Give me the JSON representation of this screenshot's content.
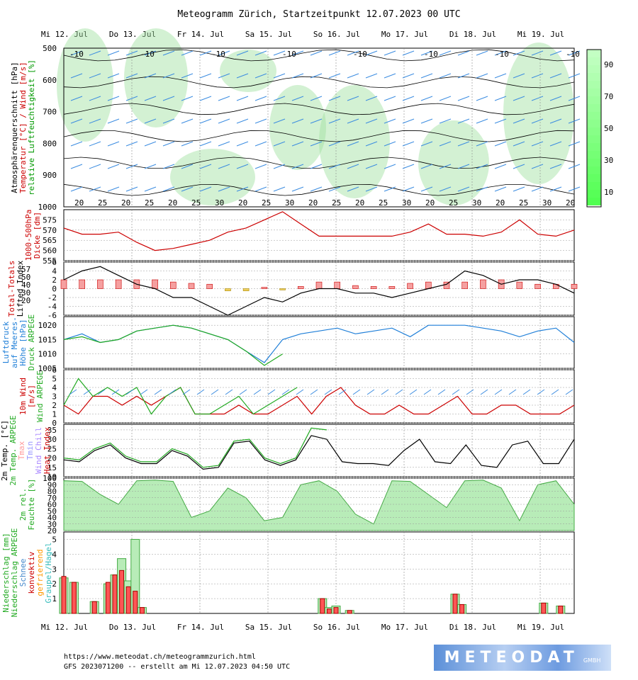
{
  "chart_data": {
    "type": "line",
    "title": "Meteogramm Zürich, Startzeitpunkt 12.07.2023 00 UTC",
    "days": [
      "Mi 12. Jul",
      "Do 13. Jul",
      "Fr 14. Jul",
      "Sa 15. Jul",
      "So 16. Jul",
      "Mo 17. Jul",
      "Di 18. Jul",
      "Mi 19. Jul"
    ],
    "panels": [
      {
        "id": "cross-section",
        "labels": [
          {
            "text": "Atmosphärenquerschnitt [hPa]",
            "color": "#000000"
          },
          {
            "text": "Temperatur [°C] / Wind [m/s]",
            "color": "#cc0000"
          },
          {
            "text": "relative Luftfeuchtigkeit [%]",
            "color": "#009900"
          }
        ],
        "yticks": [
          "500",
          "600",
          "700",
          "800",
          "900",
          "1000"
        ],
        "colorbar_ticks": [
          "90",
          "70",
          "50",
          "30",
          "10"
        ],
        "upper_temps": [
          "-10",
          "-10",
          "-10",
          "-10",
          "-10",
          "-10",
          "-10",
          "-10"
        ],
        "lower_temps": [
          "20",
          "25",
          "20",
          "25",
          "20",
          "25",
          "30",
          "20",
          "25",
          "30",
          "20",
          "25",
          "20",
          "25",
          "30",
          "20",
          "25",
          "30",
          "20",
          "25",
          "30",
          "20"
        ]
      },
      {
        "id": "thickness",
        "labels": [
          {
            "text": "1000-500hPa",
            "color": "#cc0000"
          },
          {
            "text": "Dicke [dm]",
            "color": "#cc0000"
          }
        ],
        "yticks": [
          "575",
          "570",
          "565",
          "560",
          "555"
        ],
        "ylim": [
          555,
          580
        ],
        "series": [
          {
            "values": [
              571,
              568,
              568,
              569,
              564,
              560,
              561,
              563,
              565,
              569,
              571,
              575,
              579,
              573,
              567,
              567,
              567,
              567,
              567,
              569,
              573,
              568,
              568,
              567,
              569,
              575,
              568,
              567,
              570
            ]
          }
        ]
      },
      {
        "id": "lifted-index",
        "labels": [
          {
            "text": "Total-Totals",
            "color": "#cc0000"
          },
          {
            "text": "Lifted Index",
            "color": "#000000"
          }
        ],
        "tt_labels": [
          "57",
          "50",
          "40",
          "30",
          "20"
        ],
        "yticks": [
          "-6",
          "-4",
          "-2",
          "0",
          "2",
          "4",
          "6"
        ],
        "ylim": [
          -6,
          6
        ],
        "series": [
          {
            "values": [
              -2,
              -4,
              -5,
              -3,
              -1,
              0,
              2,
              2,
              4,
              6,
              4,
              2,
              3,
              1,
              0,
              0,
              1,
              1,
              2,
              1,
              0,
              -1,
              -4,
              -3,
              -1,
              -2,
              -2,
              -1,
              1
            ]
          }
        ],
        "bars": [
          -2,
          -2,
          -2,
          -2,
          -2,
          -2,
          -1.5,
          -1.2,
          -1,
          0.5,
          0.5,
          -0.3,
          0.3,
          -0.5,
          -1.5,
          -1.5,
          -0.7,
          -0.5,
          -0.5,
          -1.2,
          -1.5,
          -1.5,
          -1.5,
          -2,
          -2,
          -1.5,
          -1,
          -1,
          -1
        ]
      },
      {
        "id": "pressure",
        "labels": [
          {
            "text": "Luftdruck",
            "color": "#1f7fd8"
          },
          {
            "text": "auf Meeres-",
            "color": "#1f7fd8"
          },
          {
            "text": "Höhe [hPa]",
            "color": "#1f7fd8"
          },
          {
            "text": "Druck ARPEGE",
            "color": "#22aa22"
          }
        ],
        "yticks": [
          "1020",
          "1015",
          "1010",
          "1005"
        ],
        "ylim": [
          1005,
          1023
        ],
        "series": [
          {
            "values": [
              1015,
              1017,
              1014,
              1015,
              1018,
              1019,
              1020,
              1019,
              1017,
              1015,
              1011,
              1007,
              1015,
              1017,
              1018,
              1019,
              1017,
              1018,
              1019,
              1016,
              1020,
              1020,
              1020,
              1019,
              1018,
              1016,
              1018,
              1019,
              1014
            ]
          },
          {
            "values": [
              1015,
              1016,
              1014,
              1015,
              1018,
              1019,
              1020,
              1019,
              1017,
              1015,
              1011,
              1006,
              1010
            ]
          }
        ]
      },
      {
        "id": "wind10m",
        "labels": [
          {
            "text": "10m Wind",
            "color": "#cc0000"
          },
          {
            "text": "[m/s]",
            "color": "#cc0000"
          },
          {
            "text": "Wind ARPEGE",
            "color": "#22aa22"
          }
        ],
        "yticks": [
          "6",
          "5",
          "4",
          "3",
          "2",
          "1",
          "0"
        ],
        "ylim": [
          0,
          6
        ],
        "series": [
          {
            "values": [
              2,
              1,
              3,
              3,
              2,
              3,
              2,
              3,
              4,
              1,
              1,
              1,
              2,
              1,
              1,
              2,
              3,
              1,
              3,
              4,
              2,
              1,
              1,
              2,
              1,
              1,
              2,
              3,
              1,
              1,
              2,
              2,
              1,
              1,
              1,
              2
            ]
          },
          {
            "values": [
              2,
              5,
              3,
              4,
              3,
              4,
              1,
              3,
              4,
              1,
              1,
              2,
              3,
              1,
              2,
              3,
              4
            ]
          }
        ]
      },
      {
        "id": "temp2m",
        "labels": [
          {
            "text": "2m Temp. [°C]",
            "color": "#000000"
          },
          {
            "text": "2m Temp. ARPEGE",
            "color": "#22aa22"
          },
          {
            "text": "Tmax",
            "color": "#ff9999"
          },
          {
            "text": "Tmin",
            "color": "#9999ff"
          },
          {
            "text": "Wind Chill",
            "color": "#aa88ff"
          },
          {
            "text": "Heat Index",
            "color": "#cc0000"
          }
        ],
        "yticks": [
          "35",
          "30",
          "25",
          "20",
          "15",
          "10"
        ],
        "ylim": [
          10,
          38
        ],
        "series": [
          {
            "values": [
              19,
              18,
              24,
              27,
              20,
              17,
              17,
              24,
              21,
              14,
              15,
              28,
              29,
              19,
              16,
              19,
              32,
              30,
              18,
              17,
              17,
              16,
              24,
              30,
              18,
              17,
              27,
              16,
              15,
              27,
              29,
              17,
              17,
              30
            ]
          },
          {
            "values": [
              20,
              19,
              25,
              28,
              21,
              18,
              18,
              25,
              22,
              15,
              16,
              29,
              30,
              20,
              17,
              20,
              36,
              35
            ]
          }
        ]
      },
      {
        "id": "rh2m",
        "labels": [
          {
            "text": "2m rel.",
            "color": "#22aa22"
          },
          {
            "text": "Feuchte [%]",
            "color": "#22aa22"
          }
        ],
        "yticks": [
          "100",
          "90",
          "80",
          "70",
          "60",
          "50",
          "40",
          "30",
          "20"
        ],
        "ylim": [
          20,
          100
        ],
        "series": [
          {
            "values": [
              96,
              95,
              75,
              60,
              96,
              97,
              95,
              40,
              50,
              85,
              70,
              35,
              40,
              90,
              96,
              80,
              45,
              30,
              96,
              95,
              75,
              55,
              96,
              97,
              85,
              35,
              90,
              96,
              60
            ]
          }
        ]
      },
      {
        "id": "precip",
        "labels": [
          {
            "text": "Niederschlag [mm]",
            "color": "#22aa22"
          },
          {
            "text": "Niederschlag ARPEGE",
            "color": "#22aa22"
          },
          {
            "text": "Schnee",
            "color": "#4488cc"
          },
          {
            "text": "konvektiv",
            "color": "#cc0000"
          },
          {
            "text": "gefrierend",
            "color": "#ff9900"
          },
          {
            "text": "Graupel/Hagel",
            "color": "#33bbbb"
          }
        ],
        "yticks": [
          "5",
          "4",
          "3",
          "2",
          "1"
        ],
        "ylim": [
          0,
          5.5
        ],
        "bars": [
          {
            "day": 0.0,
            "gfs": 2.5,
            "arp": 2.4
          },
          {
            "day": 0.15,
            "gfs": 2.1,
            "arp": 2.1
          },
          {
            "day": 0.45,
            "gfs": 0.8,
            "arp": 0.8
          },
          {
            "day": 0.65,
            "gfs": 2.1,
            "arp": 2.0
          },
          {
            "day": 0.75,
            "gfs": 2.6,
            "arp": 2.6
          },
          {
            "day": 0.85,
            "gfs": 2.9,
            "arp": 3.7
          },
          {
            "day": 0.95,
            "gfs": 1.8,
            "arp": 2.2
          },
          {
            "day": 1.05,
            "gfs": 1.5,
            "arp": 5.0
          },
          {
            "day": 1.15,
            "gfs": 0.4,
            "arp": 0.4
          },
          {
            "day": 3.8,
            "gfs": 1.0,
            "arp": 1.0
          },
          {
            "day": 3.9,
            "gfs": 0.3,
            "arp": 0.4
          },
          {
            "day": 4.0,
            "gfs": 0.4,
            "arp": 0.5
          },
          {
            "day": 4.2,
            "gfs": 0.2,
            "arp": 0.2
          },
          {
            "day": 5.75,
            "gfs": 1.3,
            "arp": 1.3
          },
          {
            "day": 5.85,
            "gfs": 0.6,
            "arp": 0.6
          },
          {
            "day": 7.05,
            "gfs": 0.7,
            "arp": 0.7
          },
          {
            "day": 7.3,
            "gfs": 0.5,
            "arp": 0.5
          }
        ]
      }
    ]
  },
  "footer": {
    "url": "https://www.meteodat.ch/meteogrammzurich.html",
    "run_info": "GFS 2023071200 -- erstellt am Mi 12.07.2023 04:50 UTC"
  },
  "logo": {
    "main": "METEODAT",
    "sub": "GMBH"
  },
  "colors": {
    "temp": "#cc0000",
    "pressure": "#1f7fd8",
    "arpege": "#22aa22",
    "humidity_fill": "#b8ecb8",
    "wind_barb": "#3b8ce0"
  }
}
